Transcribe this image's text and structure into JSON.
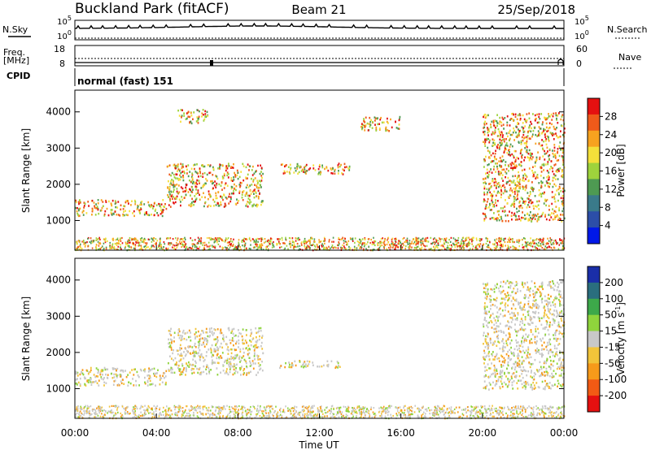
{
  "header": {
    "station": "Buckland Park (fitACF)",
    "beam": "Beam 21",
    "date": "25/Sep/2018"
  },
  "noise_panel": {
    "left_label": "N.Sky",
    "right_label": "N.Search",
    "left_ticks": [
      "10^5",
      "10^0"
    ],
    "right_ticks": [
      "10^5",
      "10^0"
    ]
  },
  "freq_panel": {
    "left_label_1": "Freq.",
    "left_label_2": "[MHz]",
    "left_ticks": [
      "18",
      "8"
    ],
    "right_label": "Nave",
    "right_ticks": [
      "60",
      "0"
    ]
  },
  "cpid_panel": {
    "label": "CPID",
    "program": "normal (fast) 151"
  },
  "chart_data": [
    {
      "type": "heatmap",
      "title": "",
      "xlabel": "Time UT",
      "ylabel": "Slant Range [km]",
      "x_ticks": [
        "00:00",
        "04:00",
        "08:00",
        "12:00",
        "16:00",
        "20:00",
        "00:00"
      ],
      "y_ticks": [
        "1000",
        "2000",
        "3000",
        "4000"
      ],
      "xlim_hours": [
        0,
        24
      ],
      "ylim_km": [
        180,
        4600
      ],
      "colorbar": {
        "label": "Power [dB]",
        "ticks": [
          "28",
          "24",
          "20",
          "16",
          "12",
          "8",
          "4"
        ],
        "range": [
          0,
          32
        ],
        "colors": [
          "#0018e8",
          "#2c4ea8",
          "#3a7a8a",
          "#4e9a52",
          "#9ed33c",
          "#f4e03a",
          "#f7a21f",
          "#ef5a1a",
          "#e51010"
        ]
      },
      "echo_regions": [
        {
          "t_start": 0.0,
          "t_end": 4.5,
          "r_start": 1150,
          "r_end": 1600,
          "value": "18-28 dB"
        },
        {
          "t_start": 4.5,
          "t_end": 9.2,
          "r_start": 1400,
          "r_end": 2600,
          "value": "20-30 dB"
        },
        {
          "t_start": 5.0,
          "t_end": 6.5,
          "r_start": 3700,
          "r_end": 4100,
          "value": "12-24 dB"
        },
        {
          "t_start": 10.0,
          "t_end": 13.5,
          "r_start": 2300,
          "r_end": 2600,
          "value": "6-14 dB"
        },
        {
          "t_start": 14.0,
          "t_end": 16.0,
          "r_start": 3500,
          "r_end": 3900,
          "value": "6-12 dB"
        },
        {
          "t_start": 20.0,
          "t_end": 24.0,
          "r_start": 1000,
          "r_end": 4000,
          "value": "14-28 dB"
        }
      ]
    },
    {
      "type": "heatmap",
      "title": "",
      "xlabel": "Time UT",
      "ylabel": "Slant Range [km]",
      "x_ticks": [
        "00:00",
        "04:00",
        "08:00",
        "12:00",
        "16:00",
        "20:00",
        "00:00"
      ],
      "y_ticks": [
        "1000",
        "2000",
        "3000",
        "4000"
      ],
      "xlim_hours": [
        0,
        24
      ],
      "ylim_km": [
        180,
        4600
      ],
      "colorbar": {
        "label": "Velocity [m s^-1]",
        "ticks": [
          "200",
          "100",
          "50",
          "15",
          "-15",
          "-50",
          "-100",
          "-200"
        ],
        "range": [
          -250,
          250
        ],
        "colors": [
          "#e51010",
          "#f25a14",
          "#f79a1a",
          "#f2c43a",
          "#c8c8c8",
          "#8fd43c",
          "#3da84a",
          "#2a6e7e",
          "#1a2ea8"
        ]
      },
      "echo_regions": [
        {
          "t_start": 0.0,
          "t_end": 4.5,
          "r_start": 1100,
          "r_end": 1600,
          "value": "-15 to 15 m/s"
        },
        {
          "t_start": 4.5,
          "t_end": 9.2,
          "r_start": 1400,
          "r_end": 2700,
          "value": "-15 to -100 m/s"
        },
        {
          "t_start": 10.0,
          "t_end": 13.0,
          "r_start": 1600,
          "r_end": 1800,
          "value": "-50 to -100 m/s"
        },
        {
          "t_start": 20.0,
          "t_end": 24.0,
          "r_start": 1000,
          "r_end": 4000,
          "value": "-15 to 15 m/s"
        }
      ]
    }
  ]
}
